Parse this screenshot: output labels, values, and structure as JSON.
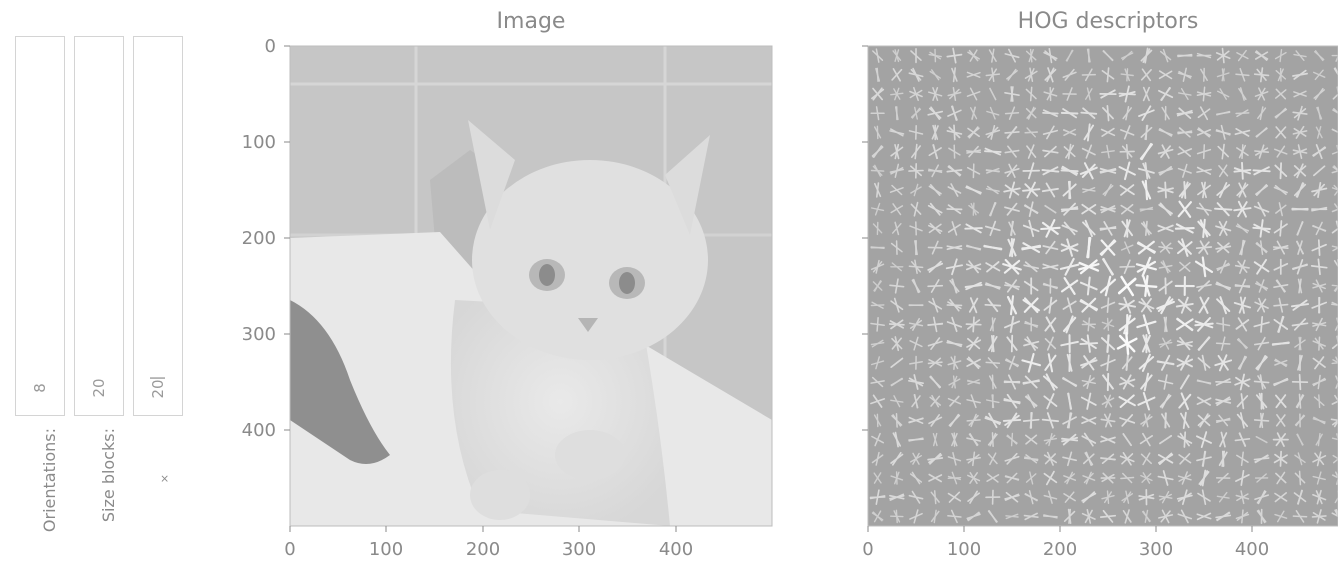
{
  "controls": [
    {
      "label": "Orientations:",
      "value": "8"
    },
    {
      "label": "Size blocks:",
      "value": "20"
    },
    {
      "label": "×",
      "value": "20"
    }
  ],
  "panels": [
    {
      "title": "Image",
      "subject": "grayscale photo of a kitten"
    },
    {
      "title": "HOG descriptors",
      "subject": "HOG orientation histogram visualization"
    }
  ],
  "chart_data": [
    {
      "type": "image",
      "title": "Image",
      "x_ticks": [
        "0",
        "100",
        "200",
        "300",
        "400"
      ],
      "y_ticks": [
        "0",
        "100",
        "200",
        "300",
        "400"
      ],
      "xlim": [
        0,
        500
      ],
      "ylim": [
        500,
        0
      ],
      "grid": false
    },
    {
      "type": "image",
      "title": "HOG descriptors",
      "x_ticks": [
        "0",
        "100",
        "200",
        "300",
        "400"
      ],
      "xlim": [
        0,
        500
      ],
      "ylim": [
        500,
        0
      ],
      "grid": false
    }
  ],
  "colors": {
    "axis": "#8a8a8a",
    "hog_background": "#a3a3a3",
    "image_background": "#c6c6c6"
  }
}
